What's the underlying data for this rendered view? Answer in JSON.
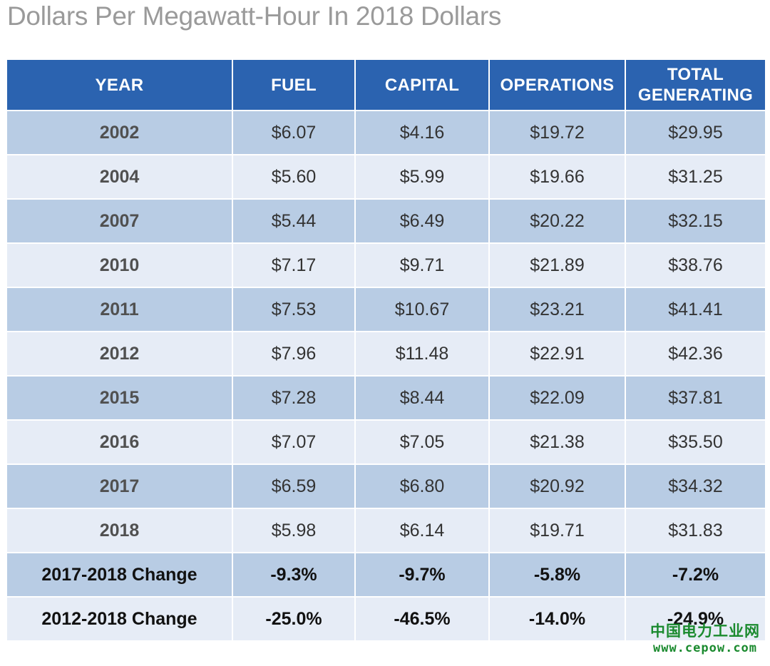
{
  "title": "Dollars Per Megawatt-Hour In 2018 Dollars",
  "watermark": {
    "site_name": "中国电力工业网",
    "url": "www.cepow.com",
    "color": "#1a8a2e"
  },
  "colors": {
    "header": "#2b63b0",
    "band_dark": "#b8cce4",
    "band_light": "#e6ecf6",
    "title": "#9a9a9a"
  },
  "chart_data": {
    "type": "table",
    "title": "Dollars Per Megawatt-Hour In 2018 Dollars",
    "columns": [
      "YEAR",
      "FUEL",
      "CAPITAL",
      "OPERATIONS",
      "TOTAL GENERATING"
    ],
    "rows": [
      [
        "2002",
        "$6.07",
        "$4.16",
        "$19.72",
        "$29.95"
      ],
      [
        "2004",
        "$5.60",
        "$5.99",
        "$19.66",
        "$31.25"
      ],
      [
        "2007",
        "$5.44",
        "$6.49",
        "$20.22",
        "$32.15"
      ],
      [
        "2010",
        "$7.17",
        "$9.71",
        "$21.89",
        "$38.76"
      ],
      [
        "2011",
        "$7.53",
        "$10.67",
        "$23.21",
        "$41.41"
      ],
      [
        "2012",
        "$7.96",
        "$11.48",
        "$22.91",
        "$42.36"
      ],
      [
        "2015",
        "$7.28",
        "$8.44",
        "$22.09",
        "$37.81"
      ],
      [
        "2016",
        "$7.07",
        "$7.05",
        "$21.38",
        "$35.50"
      ],
      [
        "2017",
        "$6.59",
        "$6.80",
        "$20.92",
        "$34.32"
      ],
      [
        "2018",
        "$5.98",
        "$6.14",
        "$19.71",
        "$31.83"
      ],
      [
        "2017-2018 Change",
        "-9.3%",
        "-9.7%",
        "-5.8%",
        "-7.2%"
      ],
      [
        "2012-2018 Change",
        "-25.0%",
        "-46.5%",
        "-14.0%",
        "-24.9%"
      ]
    ]
  }
}
